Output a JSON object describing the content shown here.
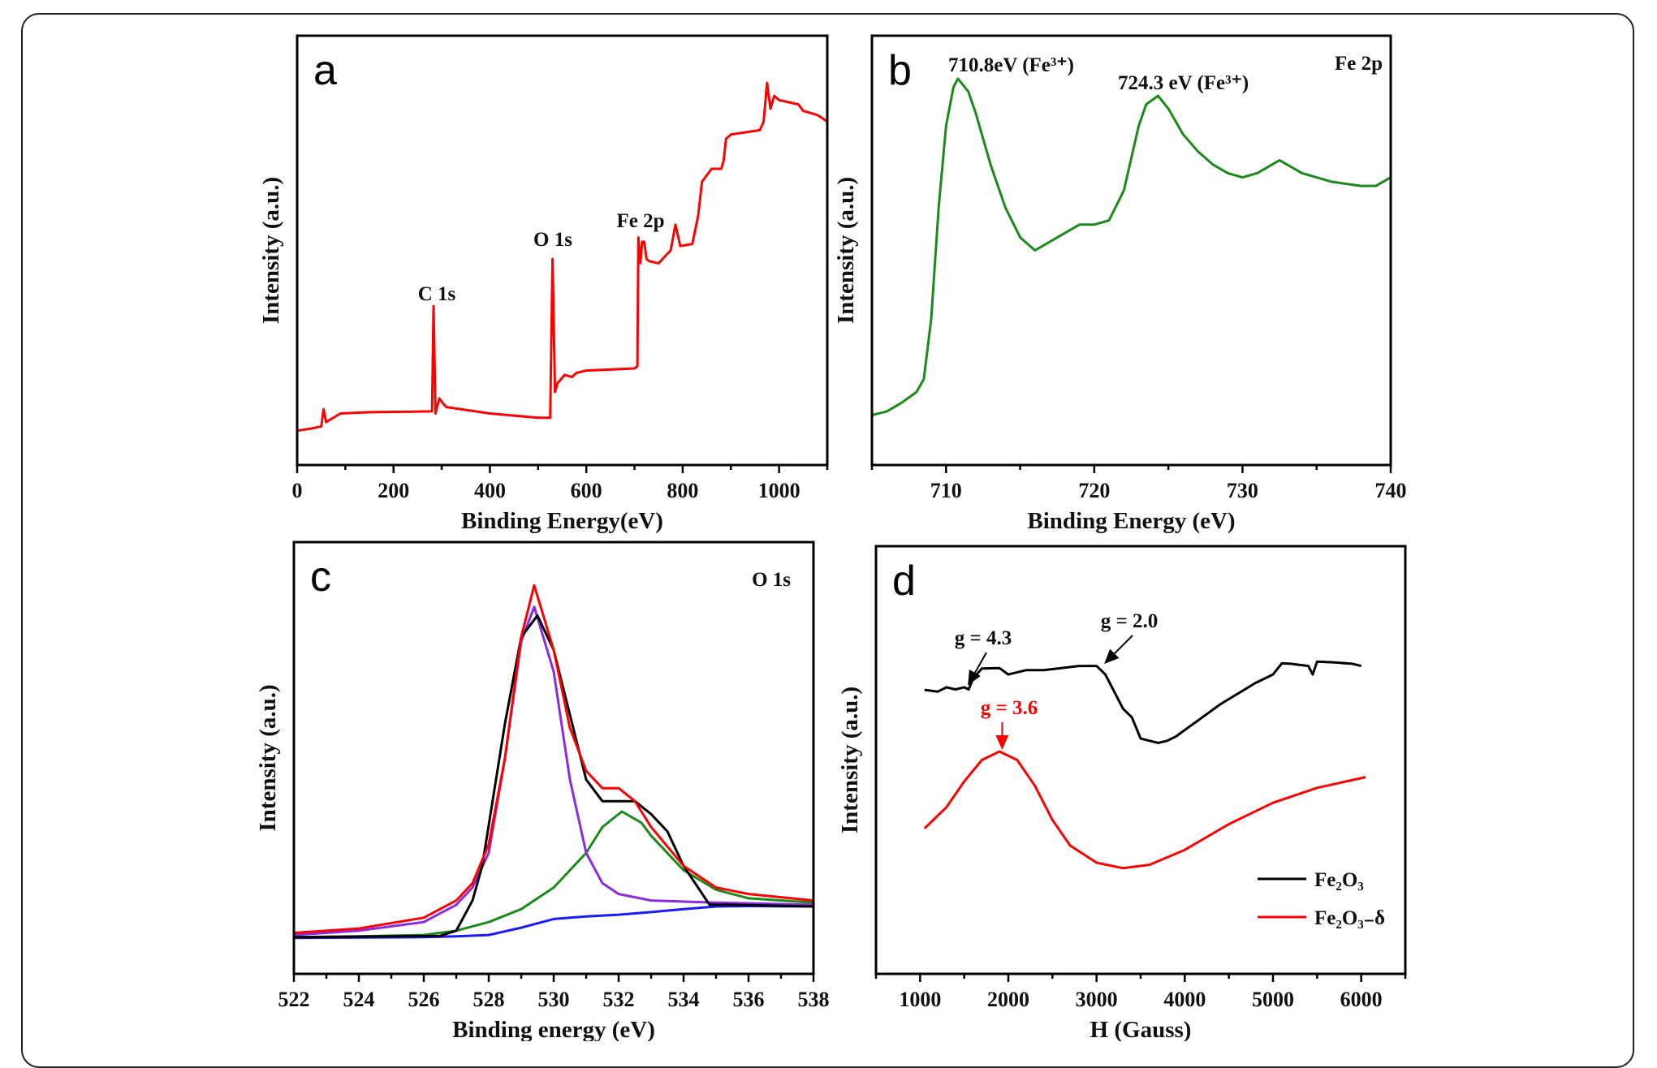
{
  "chart_data": [
    {
      "panel": "a",
      "type": "line",
      "xlabel": "Binding Energy(eV)",
      "ylabel": "Intensity (a.u.)",
      "xlim": [
        0,
        1100
      ],
      "ylim": [
        0,
        100
      ],
      "xticks": [
        0,
        200,
        400,
        600,
        800,
        1000
      ],
      "annotations": [
        "C 1s",
        "O 1s",
        "Fe 2p"
      ],
      "series": [
        {
          "color": "#ff0000",
          "x": [
            0,
            30,
            50,
            55,
            60,
            90,
            150,
            280,
            283,
            287,
            295,
            305,
            310,
            400,
            500,
            525,
            530,
            535,
            540,
            555,
            570,
            580,
            600,
            700,
            706,
            708,
            712,
            716,
            720,
            725,
            730,
            750,
            775,
            785,
            795,
            820,
            832,
            840,
            860,
            880,
            885,
            890,
            900,
            960,
            968,
            975,
            982,
            990,
            1000,
            1040,
            1050,
            1080,
            1100
          ],
          "y": [
            8,
            8.5,
            9,
            13,
            10,
            12,
            12.3,
            12.5,
            37,
            12,
            15.5,
            14,
            13.5,
            12,
            11,
            11,
            48,
            17,
            19,
            21,
            20.5,
            21.5,
            22,
            22.5,
            23,
            53,
            47,
            52,
            52,
            48,
            47.5,
            47,
            50,
            56,
            51,
            51.5,
            58,
            66,
            69,
            69,
            71,
            76,
            77,
            78,
            80,
            89,
            83,
            86,
            85,
            84,
            82.5,
            81.5,
            80
          ]
        }
      ]
    },
    {
      "panel": "b",
      "type": "line",
      "xlabel": "Binding Energy (eV)",
      "ylabel": "Intensity (a.u.)",
      "xlim": [
        705,
        740
      ],
      "ylim": [
        0,
        100
      ],
      "xticks": [
        710,
        720,
        730,
        740
      ],
      "annotations": [
        "710.8eV (Fe³⁺)",
        "724.3 eV (Fe³⁺)",
        "Fe 2p"
      ],
      "series": [
        {
          "color": "#1a8a1a",
          "x": [
            705,
            706,
            707,
            708,
            708.5,
            709,
            709.5,
            710,
            710.5,
            710.8,
            711.5,
            712,
            713,
            714,
            715,
            716,
            717,
            718,
            719,
            720,
            721,
            722,
            723,
            723.5,
            724.3,
            725,
            726,
            727,
            728,
            729,
            730,
            731,
            732.5,
            734,
            735,
            736,
            738,
            739,
            740
          ],
          "y": [
            11.6,
            12.5,
            14.5,
            17,
            20,
            34,
            60,
            79,
            88,
            90,
            87,
            82,
            70,
            60,
            53,
            50,
            52,
            54,
            56,
            56,
            57,
            64,
            79,
            84,
            86,
            83,
            77,
            73,
            70,
            68,
            67,
            68,
            71,
            68,
            67,
            66,
            65,
            65,
            67
          ]
        }
      ]
    },
    {
      "panel": "c",
      "type": "line",
      "xlabel": "Binding energy (eV)",
      "ylabel": "Intensity (a.u.)",
      "xlim": [
        522,
        538
      ],
      "ylim": [
        0,
        100
      ],
      "xticks": [
        522,
        524,
        526,
        528,
        530,
        532,
        534,
        536,
        538
      ],
      "annotations": [
        "O 1s"
      ],
      "series": [
        {
          "color": "#1a1aff",
          "x": [
            522,
            526,
            527,
            528,
            529,
            530,
            531,
            532,
            533,
            534,
            535,
            536,
            538
          ],
          "y": [
            8.3,
            8.5,
            8.7,
            9,
            10.7,
            12.7,
            13.3,
            13.7,
            14.3,
            15,
            15.6,
            15.7,
            15.6
          ]
        },
        {
          "color": "#1a8a1a",
          "x": [
            522,
            524,
            526,
            527,
            528,
            529,
            530,
            531,
            531.5,
            532.1,
            532.7,
            533,
            534,
            535,
            536,
            538
          ],
          "y": [
            8.5,
            8.7,
            9,
            10,
            12,
            15,
            20,
            28,
            34,
            37.6,
            35,
            32,
            24,
            19.5,
            17.5,
            16.5
          ]
        },
        {
          "color": "#8a2be2",
          "x": [
            522,
            524,
            526,
            527,
            527.5,
            528,
            528.5,
            529,
            529.4,
            530,
            530.5,
            531,
            531.5,
            532,
            533,
            535,
            538
          ],
          "y": [
            9,
            10,
            12,
            16,
            20,
            28,
            50,
            77,
            85,
            70,
            45,
            28,
            21,
            18.5,
            17,
            16.5,
            16
          ]
        },
        {
          "color": "#000000",
          "x": [
            522,
            526.5,
            527,
            527.5,
            527.8,
            528.5,
            529,
            529.5,
            530,
            530.5,
            531,
            531.5,
            532,
            532.5,
            533,
            533.5,
            534,
            534.8,
            535.5,
            538
          ],
          "y": [
            8.5,
            8.8,
            10,
            17,
            25,
            58,
            78,
            83,
            75,
            60,
            45,
            40,
            40,
            40,
            37,
            33,
            25,
            16,
            16,
            15.6
          ]
        },
        {
          "color": "#ff0000",
          "x": [
            522,
            524,
            526,
            527,
            527.5,
            528,
            528.5,
            529,
            529.4,
            530,
            530.5,
            531,
            531.5,
            532,
            532.5,
            533,
            534,
            535,
            536,
            538
          ],
          "y": [
            9.5,
            10.5,
            13,
            17,
            21,
            30,
            50,
            78,
            90,
            75,
            57,
            47,
            43,
            43,
            40,
            34,
            25,
            20,
            18.5,
            17
          ]
        }
      ]
    },
    {
      "panel": "d",
      "type": "line",
      "xlabel": "H (Gauss)",
      "ylabel": "Intensity (a.u.)",
      "xlim": [
        500,
        6500
      ],
      "ylim": [
        0,
        100
      ],
      "xticks": [
        1000,
        2000,
        3000,
        4000,
        5000,
        6000
      ],
      "annotations": [
        "g = 4.3",
        "g = 2.0",
        "g = 3.6"
      ],
      "legend": "bottom-right",
      "series": [
        {
          "name": "Fe₂O₃",
          "color": "#000000",
          "x": [
            1050,
            1200,
            1300,
            1400,
            1500,
            1550,
            1600,
            1700,
            1900,
            2000,
            2200,
            2400,
            2600,
            2800,
            3000,
            3100,
            3200,
            3300,
            3400,
            3500,
            3600,
            3700,
            3800,
            3900,
            4000,
            4200,
            4400,
            4600,
            4800,
            5000,
            5100,
            5200,
            5400,
            5450,
            5500,
            5700,
            5900,
            6000
          ],
          "y": [
            66.4,
            66,
            67,
            66.5,
            67,
            66.5,
            69,
            71.4,
            71.5,
            70,
            71,
            71,
            71.5,
            72,
            72,
            70,
            66,
            62,
            60,
            55,
            54.5,
            54,
            54.5,
            55.5,
            57,
            60,
            63,
            65.5,
            68,
            70,
            72.6,
            72.5,
            72,
            70,
            73,
            72.8,
            72.5,
            72
          ]
        },
        {
          "name": "Fe₂O₃₋δ",
          "color": "#ff0000",
          "x": [
            1050,
            1300,
            1500,
            1700,
            1900,
            2100,
            2300,
            2500,
            2700,
            3000,
            3300,
            3600,
            4000,
            4500,
            5000,
            5500,
            6050
          ],
          "y": [
            34,
            39,
            45,
            50,
            52,
            50,
            44,
            36,
            30,
            26,
            24.7,
            25.5,
            29,
            35,
            40,
            43.5,
            46
          ]
        }
      ]
    }
  ]
}
